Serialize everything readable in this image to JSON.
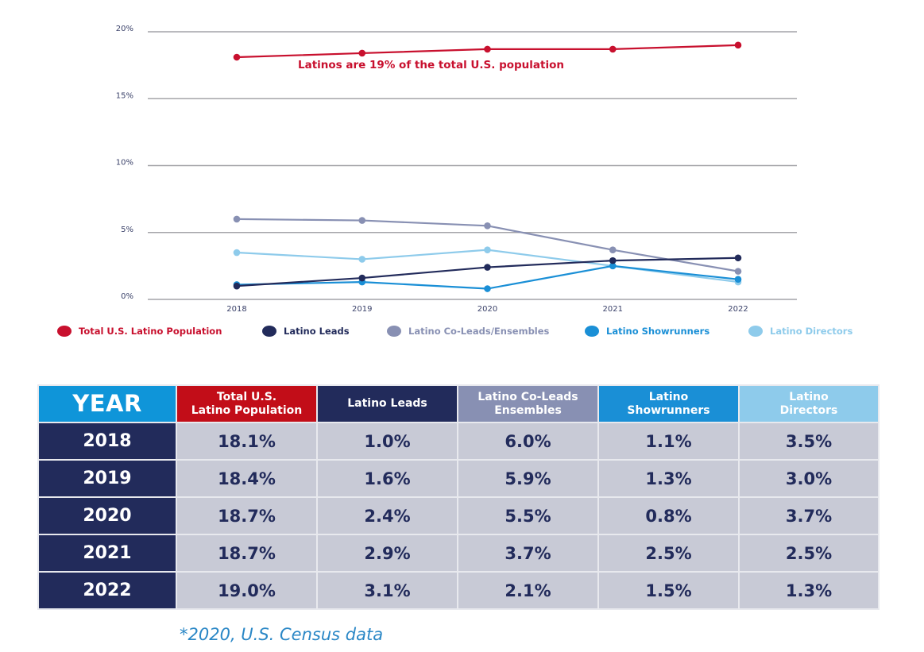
{
  "chart_data": {
    "type": "line",
    "title": "",
    "xlabel": "",
    "ylabel": "",
    "x": [
      "2018",
      "2019",
      "2020",
      "2021",
      "2022"
    ],
    "ylim": [
      0,
      20
    ],
    "yticks": [
      {
        "value": 0,
        "label": "0%"
      },
      {
        "value": 5,
        "label": "5%"
      },
      {
        "value": 10,
        "label": "10%"
      },
      {
        "value": 15,
        "label": "15%"
      },
      {
        "value": 20,
        "label": "20%"
      }
    ],
    "grid": true,
    "legend_position": "bottom",
    "annotation": "Latinos are 19% of the total U.S. population",
    "series": [
      {
        "name": "Total U.S. Latino Population",
        "color": "#c8102e",
        "values": [
          18.1,
          18.4,
          18.7,
          18.7,
          19.0
        ]
      },
      {
        "name": "Latino Leads",
        "color": "#222b5b",
        "values": [
          1.0,
          1.6,
          2.4,
          2.9,
          3.1
        ]
      },
      {
        "name": "Latino Co-Leads/Ensembles",
        "color": "#8890b3",
        "values": [
          6.0,
          5.9,
          5.5,
          3.7,
          2.1
        ]
      },
      {
        "name": "Latino Showrunners",
        "color": "#1a8fd6",
        "values": [
          1.1,
          1.3,
          0.8,
          2.5,
          1.5
        ]
      },
      {
        "name": "Latino Directors",
        "color": "#8ecbeb",
        "values": [
          3.5,
          3.0,
          3.7,
          2.5,
          1.3
        ]
      }
    ]
  },
  "table": {
    "headers": [
      {
        "label": "YEAR",
        "color": "#0f95d9"
      },
      {
        "label": "Total U.S.\nLatino Population",
        "color": "#c20d18"
      },
      {
        "label": "Latino Leads",
        "color": "#222b5b"
      },
      {
        "label": "Latino Co-Leads\nEnsembles",
        "color": "#8890b3"
      },
      {
        "label": "Latino\nShowrunners",
        "color": "#1a8fd6"
      },
      {
        "label": "Latino\nDirectors",
        "color": "#8ecbeb"
      }
    ],
    "rows": [
      [
        "2018",
        "18.1%",
        "1.0%",
        "6.0%",
        "1.1%",
        "3.5%"
      ],
      [
        "2019",
        "18.4%",
        "1.6%",
        "5.9%",
        "1.3%",
        "3.0%"
      ],
      [
        "2020",
        "18.7%",
        "2.4%",
        "5.5%",
        "0.8%",
        "3.7%"
      ],
      [
        "2021",
        "18.7%",
        "2.9%",
        "3.7%",
        "2.5%",
        "2.5%"
      ],
      [
        "2022",
        "19.0%",
        "3.1%",
        "2.1%",
        "1.5%",
        "1.3%"
      ]
    ]
  },
  "footnote": "*2020, U.S. Census data"
}
